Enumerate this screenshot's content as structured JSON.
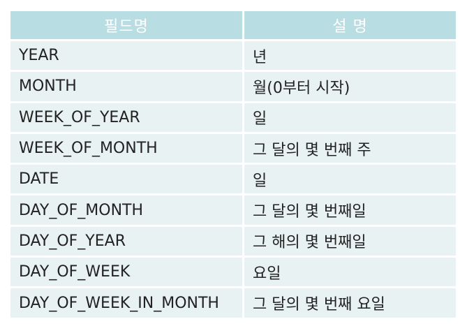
{
  "table": {
    "headers": [
      "필드명",
      "설 명"
    ],
    "rows": [
      {
        "field": "YEAR",
        "desc": "년"
      },
      {
        "field": "MONTH",
        "desc": "월(0부터 시작)"
      },
      {
        "field": "WEEK_OF_YEAR",
        "desc": "일"
      },
      {
        "field": "WEEK_OF_MONTH",
        "desc": "그 달의 몇 번째 주"
      },
      {
        "field": "DATE",
        "desc": "일"
      },
      {
        "field": "DAY_OF_MONTH",
        "desc": "그 달의 몇 번째일"
      },
      {
        "field": "DAY_OF_YEAR",
        "desc": "그 해의 몇 번째일"
      },
      {
        "field": "DAY_OF_WEEK",
        "desc": "요일"
      },
      {
        "field": "DAY_OF_WEEK_IN_MONTH",
        "desc": "그 달의 몇 번째 요일"
      }
    ]
  },
  "colors": {
    "header_bg": "#b8dde3",
    "header_text": "#ffffff",
    "row_bg": "#e8f2f3",
    "row_text": "#222222"
  }
}
